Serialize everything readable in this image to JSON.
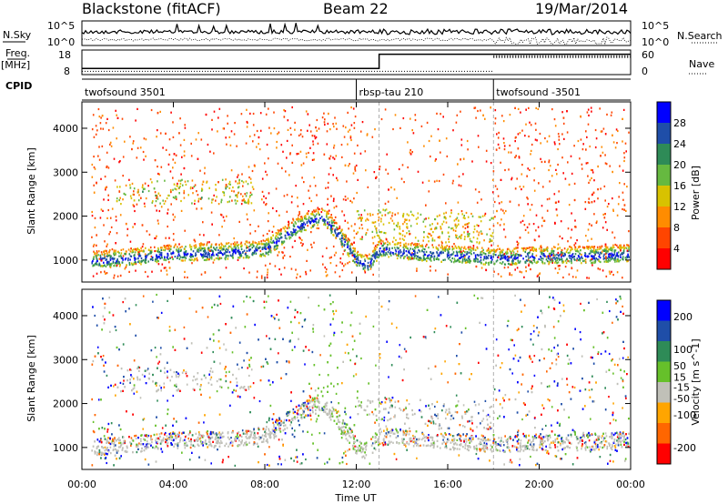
{
  "header": {
    "station": "Blackstone (fitACF)",
    "beam": "Beam 22",
    "date": "19/Mar/2014"
  },
  "side_labels": {
    "nsky": "N.Sky",
    "freq": "Freq.",
    "freq_unit": "[MHz]",
    "cpid": "CPID",
    "nsearch": "N.Search",
    "nave": "Nave"
  },
  "noise_panel": {
    "left_ticks": [
      "10^5",
      "10^0"
    ],
    "right_ticks": [
      "10^5",
      "10^0"
    ]
  },
  "freq_panel": {
    "left_ticks": [
      18,
      8
    ],
    "right_ticks": [
      60,
      0
    ],
    "freq_segments": [
      {
        "start": 0.0,
        "end": 13.0,
        "value": 10.5
      },
      {
        "start": 13.0,
        "end": 24.0,
        "value": 16.3
      }
    ],
    "nave_segments": [
      {
        "start": 0.0,
        "end": 18.0,
        "value": 8
      },
      {
        "start": 18.0,
        "end": 24.0,
        "value": 44
      }
    ]
  },
  "cpid_panel": {
    "segments": [
      {
        "label": "twofsound 3501",
        "start": 0.0
      },
      {
        "label": "rbsp-tau 210",
        "start": 12.0
      },
      {
        "label": "twofsound -3501",
        "start": 18.0
      }
    ]
  },
  "chart_data": [
    {
      "type": "heatmap",
      "title": "Power",
      "ylabel": "Slant Range [km]",
      "xlabel": "Time UT",
      "x_unit": "hours UT",
      "xlim": [
        0,
        24
      ],
      "ylim": [
        500,
        4600
      ],
      "yticks": [
        1000,
        2000,
        3000,
        4000
      ],
      "colorbar": {
        "label": "Power [dB]",
        "ticks": [
          4,
          8,
          12,
          16,
          20,
          24,
          28
        ],
        "range": [
          0,
          32
        ],
        "colors": [
          "#0000ff",
          "#1f4ea8",
          "#2e8b57",
          "#66b940",
          "#d8c200",
          "#ff8c00",
          "#ff4500",
          "#ff0000"
        ]
      },
      "echo_bands": [
        {
          "name": "near-range ionospheric",
          "t": [
            0.2,
            2,
            4,
            6,
            8,
            9.5,
            10.5,
            11.2,
            12,
            12.5,
            13,
            15,
            17,
            18,
            20,
            22,
            24
          ],
          "range_km": [
            980,
            1050,
            1150,
            1180,
            1250,
            1800,
            2000,
            1600,
            1000,
            900,
            1250,
            1150,
            1100,
            1050,
            1100,
            1100,
            1150
          ]
        },
        {
          "name": "far-range patch",
          "t": [
            2,
            3,
            4,
            5,
            6,
            7
          ],
          "range_km": [
            2550,
            2650,
            2750,
            2700,
            2600,
            2550
          ]
        }
      ]
    },
    {
      "type": "heatmap",
      "title": "Velocity",
      "ylabel": "Slant Range [km]",
      "xlabel": "Time UT",
      "x_unit": "hours UT",
      "xlim": [
        0,
        24
      ],
      "ylim": [
        500,
        4600
      ],
      "yticks": [
        1000,
        2000,
        3000,
        4000
      ],
      "colorbar": {
        "label": "Velocity [m s^-1]",
        "ticks": [
          200,
          100,
          50,
          15,
          -15,
          -50,
          -100,
          -200
        ],
        "range": [
          -250,
          250
        ],
        "colors": [
          "#0000ff",
          "#1f4ea8",
          "#2e8b57",
          "#66c02a",
          "#c0c0b8",
          "#ffa500",
          "#ff6600",
          "#ff0000"
        ]
      }
    }
  ],
  "x_axis": {
    "label": "Time UT",
    "ticks": [
      "00:00",
      "04:00",
      "08:00",
      "12:00",
      "16:00",
      "20:00",
      "00:00"
    ]
  }
}
